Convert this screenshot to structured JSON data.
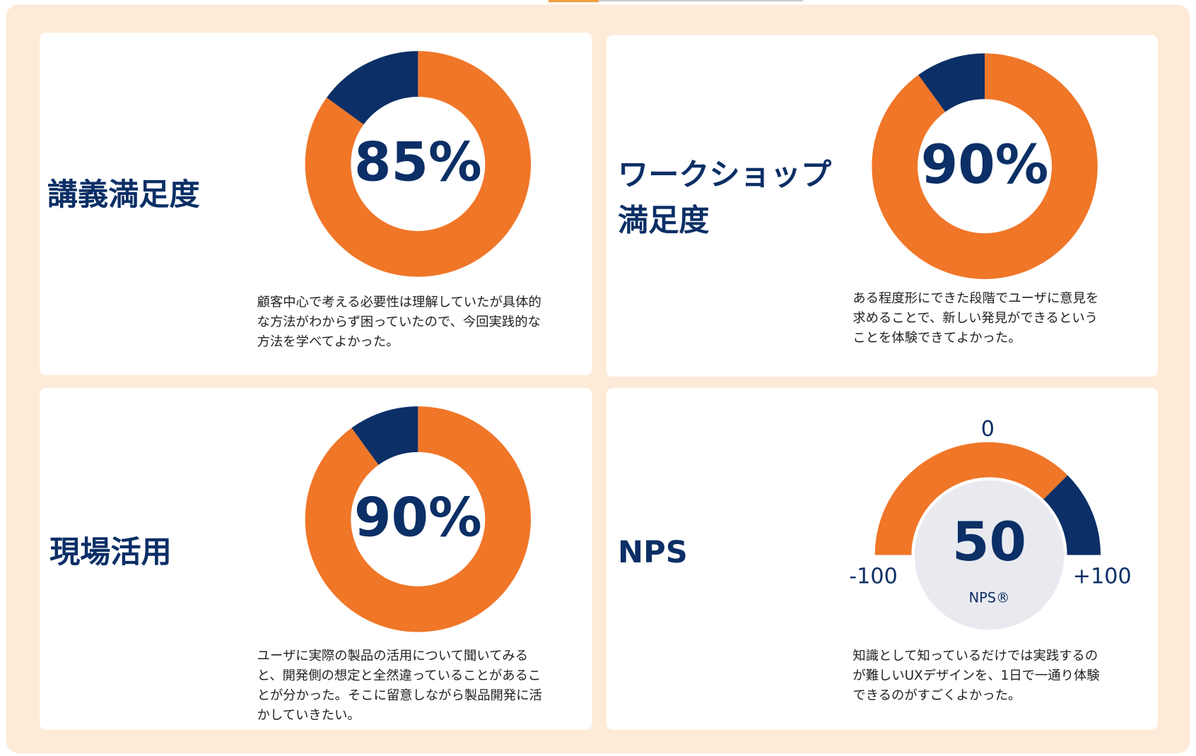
{
  "chart_data": [
    {
      "type": "donut",
      "title": [
        "講義満足度"
      ],
      "value": 85,
      "value_label": "85%",
      "ylim": [
        0,
        100
      ],
      "colors": [
        "#f07628",
        "#0b2f66"
      ],
      "description": [
        "顧客中心で考える必要性は理解していたが具体的",
        "な方法がわからず困っていたので、今回実践的な",
        "方法を学べてよかった。"
      ]
    },
    {
      "type": "donut",
      "title": [
        "ワークショップ",
        "満足度"
      ],
      "value": 90,
      "value_label": "90%",
      "ylim": [
        0,
        100
      ],
      "colors": [
        "#f07628",
        "#0b2f66"
      ],
      "description": [
        "ある程度形にできた段階でユーザに意見を",
        "求めることで、新しい発見ができるという",
        "ことを体験できてよかった。"
      ]
    },
    {
      "type": "donut",
      "title": [
        "現場活用"
      ],
      "value": 90,
      "value_label": "90%",
      "ylim": [
        0,
        100
      ],
      "colors": [
        "#f07628",
        "#0b2f66"
      ],
      "description": [
        "ユーザに実際の製品の活用について聞いてみる",
        "と、開発側の想定と全然違っていることがあるこ",
        "とが分かった。そこに留意しながら製品開発に活",
        "かしていきたい。"
      ]
    },
    {
      "type": "gauge",
      "title": [
        "NPS"
      ],
      "value": 50,
      "value_sublabel": "NPS®",
      "ylim": [
        -100,
        100
      ],
      "yticks": [
        {
          "value": -100,
          "label": "-100"
        },
        0,
        {
          "value": 100,
          "label": "+100"
        }
      ],
      "colors": [
        "#f07628",
        "#0b2f66"
      ],
      "description": [
        "知識として知っているだけでは実践するの",
        "が難しいUXデザインを、1日で一通り体験",
        "できるのがすごくよかった。"
      ]
    }
  ]
}
